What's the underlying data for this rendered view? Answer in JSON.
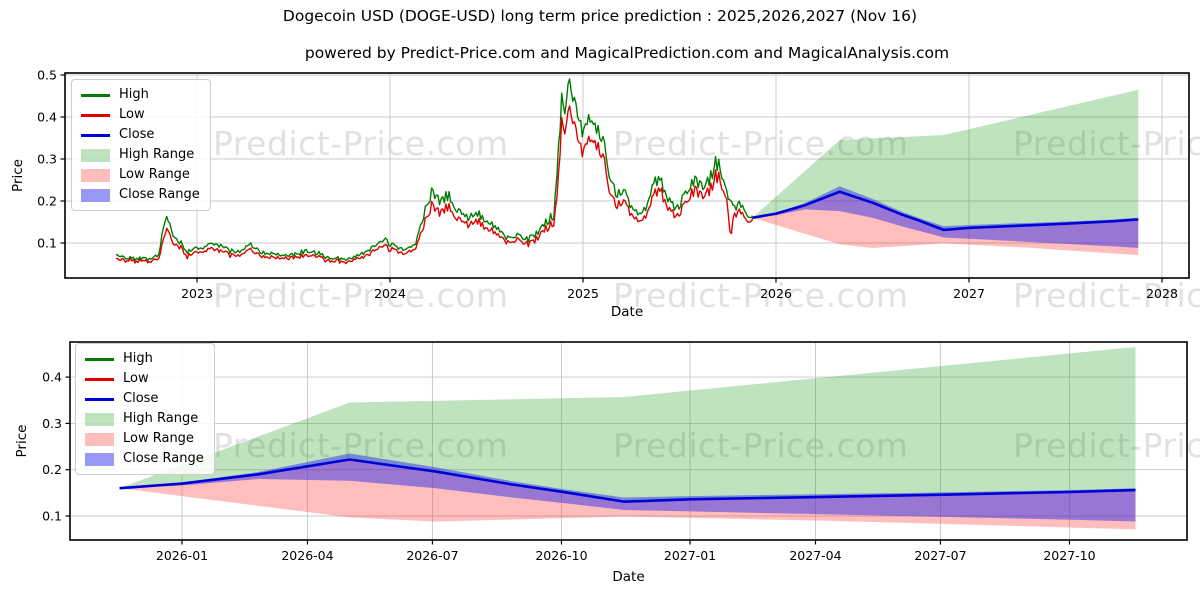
{
  "figure": {
    "title": "Dogecoin USD (DOGE-USD) long term price prediction : 2025,2026,2027 (Nov 16)",
    "subtitle": "powered by Predict-Price.com and MagicalPrediction.com and MagicalAnalysis.com",
    "watermark_text": "Predict-Price.com",
    "background": "#ffffff"
  },
  "colors": {
    "high": "#007c00",
    "low": "#e00000",
    "close": "#0000d8",
    "high_fill": "rgba(0,140,0,0.25)",
    "low_fill": "rgba(255,40,40,0.30)",
    "close_fill": "rgba(40,40,235,0.48)",
    "grid": "#c8c8c8",
    "spine": "#000000",
    "watermark": "rgba(90,90,90,0.18)"
  },
  "legend": {
    "items": [
      {
        "label": "High",
        "swatch": "line",
        "color_key": "high"
      },
      {
        "label": "Low",
        "swatch": "line",
        "color_key": "low"
      },
      {
        "label": "Close",
        "swatch": "line",
        "color_key": "close"
      },
      {
        "label": "High Range",
        "swatch": "patch",
        "color_key": "high_fill"
      },
      {
        "label": "Low Range",
        "swatch": "patch",
        "color_key": "low_fill"
      },
      {
        "label": "Close Range",
        "swatch": "patch",
        "color_key": "close_fill"
      }
    ]
  },
  "chart_data": [
    {
      "type": "line",
      "role": "full history 2022-2025 plus 2026-2027 forecast ranges",
      "xlabel": "Date",
      "ylabel": "Price",
      "x_ticks": [
        {
          "v": 2023,
          "label": "2023"
        },
        {
          "v": 2024,
          "label": "2024"
        },
        {
          "v": 2025,
          "label": "2025"
        },
        {
          "v": 2026,
          "label": "2026"
        },
        {
          "v": 2027,
          "label": "2027"
        },
        {
          "v": 2028,
          "label": "2028"
        }
      ],
      "y_ticks": [
        {
          "v": 0.1,
          "label": "0.1"
        },
        {
          "v": 0.2,
          "label": "0.2"
        },
        {
          "v": 0.3,
          "label": "0.3"
        },
        {
          "v": 0.4,
          "label": "0.4"
        },
        {
          "v": 0.5,
          "label": "0.5"
        }
      ],
      "xlim": [
        2022.32,
        2028.14
      ],
      "ylim": [
        0.017,
        0.505
      ],
      "grid": true,
      "legend_position": "upper left",
      "historical": {
        "columns": [
          "date_decimal_year",
          "high",
          "low"
        ],
        "points": [
          [
            2022.58,
            0.072,
            0.066
          ],
          [
            2022.62,
            0.067,
            0.062
          ],
          [
            2022.68,
            0.064,
            0.06
          ],
          [
            2022.75,
            0.063,
            0.059
          ],
          [
            2022.8,
            0.068,
            0.062
          ],
          [
            2022.835,
            0.16,
            0.128
          ],
          [
            2022.85,
            0.152,
            0.13
          ],
          [
            2022.87,
            0.125,
            0.105
          ],
          [
            2022.9,
            0.108,
            0.098
          ],
          [
            2022.95,
            0.081,
            0.072
          ],
          [
            2023.0,
            0.088,
            0.08
          ],
          [
            2023.06,
            0.094,
            0.085
          ],
          [
            2023.1,
            0.097,
            0.087
          ],
          [
            2023.16,
            0.083,
            0.075
          ],
          [
            2023.22,
            0.079,
            0.072
          ],
          [
            2023.27,
            0.099,
            0.088
          ],
          [
            2023.32,
            0.082,
            0.075
          ],
          [
            2023.38,
            0.074,
            0.068
          ],
          [
            2023.44,
            0.068,
            0.063
          ],
          [
            2023.5,
            0.071,
            0.066
          ],
          [
            2023.56,
            0.082,
            0.074
          ],
          [
            2023.62,
            0.077,
            0.071
          ],
          [
            2023.68,
            0.065,
            0.06
          ],
          [
            2023.74,
            0.063,
            0.059
          ],
          [
            2023.8,
            0.064,
            0.06
          ],
          [
            2023.86,
            0.076,
            0.069
          ],
          [
            2023.92,
            0.091,
            0.082
          ],
          [
            2023.97,
            0.105,
            0.094
          ],
          [
            2024.02,
            0.094,
            0.086
          ],
          [
            2024.08,
            0.086,
            0.079
          ],
          [
            2024.13,
            0.093,
            0.084
          ],
          [
            2024.18,
            0.178,
            0.152
          ],
          [
            2024.22,
            0.226,
            0.196
          ],
          [
            2024.26,
            0.192,
            0.168
          ],
          [
            2024.3,
            0.215,
            0.191
          ],
          [
            2024.35,
            0.173,
            0.156
          ],
          [
            2024.4,
            0.164,
            0.149
          ],
          [
            2024.45,
            0.173,
            0.157
          ],
          [
            2024.5,
            0.148,
            0.134
          ],
          [
            2024.56,
            0.134,
            0.122
          ],
          [
            2024.61,
            0.113,
            0.104
          ],
          [
            2024.66,
            0.119,
            0.109
          ],
          [
            2024.71,
            0.107,
            0.098
          ],
          [
            2024.76,
            0.123,
            0.112
          ],
          [
            2024.81,
            0.149,
            0.136
          ],
          [
            2024.85,
            0.167,
            0.151
          ],
          [
            2024.87,
            0.31,
            0.245
          ],
          [
            2024.89,
            0.436,
            0.382
          ],
          [
            2024.905,
            0.408,
            0.362
          ],
          [
            2024.925,
            0.48,
            0.417
          ],
          [
            2024.945,
            0.432,
            0.381
          ],
          [
            2024.965,
            0.407,
            0.352
          ],
          [
            2025.0,
            0.368,
            0.322
          ],
          [
            2025.03,
            0.422,
            0.372
          ],
          [
            2025.06,
            0.368,
            0.331
          ],
          [
            2025.1,
            0.347,
            0.311
          ],
          [
            2025.14,
            0.267,
            0.232
          ],
          [
            2025.17,
            0.216,
            0.191
          ],
          [
            2025.21,
            0.223,
            0.201
          ],
          [
            2025.25,
            0.186,
            0.169
          ],
          [
            2025.29,
            0.173,
            0.157
          ],
          [
            2025.33,
            0.186,
            0.169
          ],
          [
            2025.37,
            0.257,
            0.229
          ],
          [
            2025.41,
            0.241,
            0.219
          ],
          [
            2025.45,
            0.199,
            0.181
          ],
          [
            2025.49,
            0.179,
            0.163
          ],
          [
            2025.53,
            0.213,
            0.193
          ],
          [
            2025.57,
            0.249,
            0.227
          ],
          [
            2025.61,
            0.233,
            0.213
          ],
          [
            2025.65,
            0.243,
            0.221
          ],
          [
            2025.69,
            0.297,
            0.266
          ],
          [
            2025.72,
            0.263,
            0.239
          ],
          [
            2025.75,
            0.216,
            0.197
          ],
          [
            2025.765,
            0.206,
            0.108
          ],
          [
            2025.78,
            0.186,
            0.169
          ],
          [
            2025.81,
            0.197,
            0.181
          ],
          [
            2025.84,
            0.173,
            0.159
          ],
          [
            2025.877,
            0.165,
            0.158
          ]
        ]
      },
      "forecast": {
        "close": [
          [
            2025.877,
            0.16
          ],
          [
            2026.0,
            0.17
          ],
          [
            2026.15,
            0.19
          ],
          [
            2026.33,
            0.222
          ],
          [
            2026.5,
            0.196
          ],
          [
            2026.65,
            0.168
          ],
          [
            2026.75,
            0.152
          ],
          [
            2026.87,
            0.131
          ],
          [
            2027.0,
            0.136
          ],
          [
            2027.25,
            0.141
          ],
          [
            2027.5,
            0.146
          ],
          [
            2027.75,
            0.152
          ],
          [
            2027.877,
            0.156
          ]
        ],
        "high_range_upper": [
          [
            2025.877,
            0.16
          ],
          [
            2026.33,
            0.345
          ],
          [
            2026.87,
            0.357
          ],
          [
            2027.877,
            0.465
          ]
        ],
        "low_range_lower": [
          [
            2025.877,
            0.16
          ],
          [
            2026.33,
            0.097
          ],
          [
            2026.5,
            0.088
          ],
          [
            2026.87,
            0.099
          ],
          [
            2027.3,
            0.089
          ],
          [
            2027.877,
            0.071
          ]
        ],
        "close_range_upper": [
          [
            2025.877,
            0.16
          ],
          [
            2026.0,
            0.172
          ],
          [
            2026.15,
            0.195
          ],
          [
            2026.33,
            0.235
          ],
          [
            2026.5,
            0.205
          ],
          [
            2026.65,
            0.175
          ],
          [
            2026.75,
            0.158
          ],
          [
            2026.87,
            0.14
          ],
          [
            2027.0,
            0.143
          ],
          [
            2027.25,
            0.147
          ],
          [
            2027.5,
            0.151
          ],
          [
            2027.75,
            0.156
          ],
          [
            2027.877,
            0.16
          ]
        ],
        "close_range_lower": [
          [
            2025.877,
            0.16
          ],
          [
            2026.0,
            0.166
          ],
          [
            2026.15,
            0.18
          ],
          [
            2026.33,
            0.176
          ],
          [
            2026.5,
            0.16
          ],
          [
            2026.65,
            0.14
          ],
          [
            2026.75,
            0.128
          ],
          [
            2026.87,
            0.113
          ],
          [
            2027.0,
            0.11
          ],
          [
            2027.25,
            0.104
          ],
          [
            2027.5,
            0.098
          ],
          [
            2027.75,
            0.092
          ],
          [
            2027.877,
            0.088
          ]
        ]
      }
    },
    {
      "type": "line",
      "role": "zoomed view of the 2026-2027 forecast (same forecast series as chart 1)",
      "xlabel": "Date",
      "ylabel": "Price",
      "x_ticks": [
        {
          "v": 2026.0,
          "label": "2026-01"
        },
        {
          "v": 2026.247,
          "label": "2026-04"
        },
        {
          "v": 2026.493,
          "label": "2026-07"
        },
        {
          "v": 2026.747,
          "label": "2026-10"
        },
        {
          "v": 2027.0,
          "label": "2027-01"
        },
        {
          "v": 2027.247,
          "label": "2027-04"
        },
        {
          "v": 2027.493,
          "label": "2027-07"
        },
        {
          "v": 2027.747,
          "label": "2027-10"
        }
      ],
      "y_ticks": [
        {
          "v": 0.1,
          "label": "0.1"
        },
        {
          "v": 0.2,
          "label": "0.2"
        },
        {
          "v": 0.3,
          "label": "0.3"
        },
        {
          "v": 0.4,
          "label": "0.4"
        }
      ],
      "xlim": [
        2025.78,
        2027.98
      ],
      "ylim": [
        0.048,
        0.476
      ],
      "grid": true,
      "legend_position": "upper left"
    }
  ]
}
